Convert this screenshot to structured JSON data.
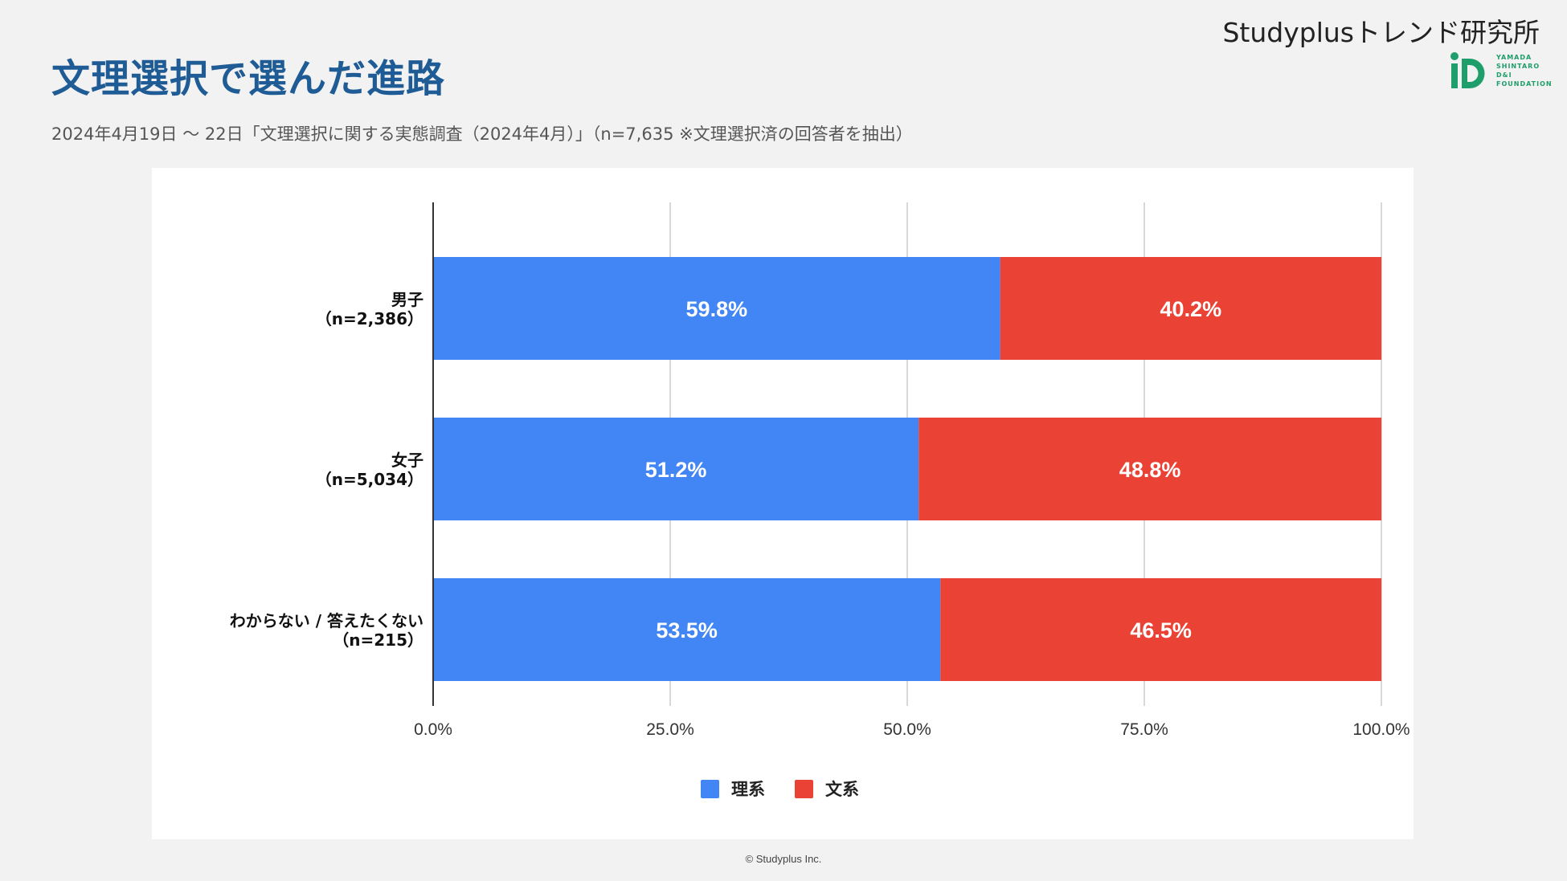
{
  "header": {
    "title": "文理選択で選んだ進路",
    "subtitle": "2024年4月19日 〜 22日「文理選択に関する実態調査（2024年4月）」（n=7,635 ※文理選択済の回答者を抽出）",
    "brand": "Studyplusトレンド研究所",
    "logo_lines": [
      "YAMADA",
      "SHINTARO",
      "D&I",
      "FOUNDATION"
    ]
  },
  "footer": {
    "copyright": "© Studyplus Inc."
  },
  "colors": {
    "rikei": "#4285f4",
    "bunkei": "#ea4335",
    "title": "#1f5c96"
  },
  "chart_data": {
    "type": "bar",
    "orientation": "horizontal",
    "stacked": true,
    "categories": [
      [
        "男子",
        "（n=2,386）"
      ],
      [
        "女子",
        "（n=5,034）"
      ],
      [
        "わからない / 答えたくない",
        "（n=215）"
      ]
    ],
    "series": [
      {
        "name": "理系",
        "color": "#4285f4",
        "values": [
          59.8,
          51.2,
          53.5
        ],
        "labels": [
          "59.8%",
          "51.2%",
          "53.5%"
        ]
      },
      {
        "name": "文系",
        "color": "#ea4335",
        "values": [
          40.2,
          48.8,
          46.5
        ],
        "labels": [
          "40.2%",
          "48.8%",
          "46.5%"
        ]
      }
    ],
    "xlim": [
      0,
      100
    ],
    "xticks": [
      "0.0%",
      "25.0%",
      "50.0%",
      "75.0%",
      "100.0%"
    ],
    "grid": true,
    "legend": "bottom-center"
  }
}
